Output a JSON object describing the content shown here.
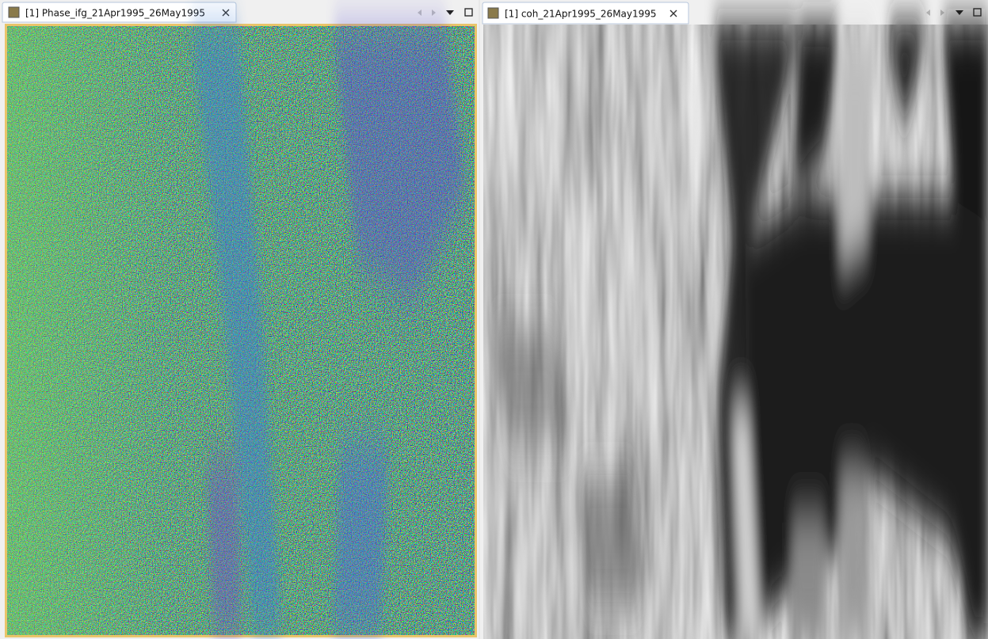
{
  "panels": [
    {
      "tab": "[1] Phase_ifg_21Apr1995_26May1995"
    },
    {
      "tab": "[1] coh_21Apr1995_26May1995"
    }
  ]
}
